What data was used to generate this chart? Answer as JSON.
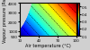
{
  "xlabel": "Air temperature (°C)",
  "ylabel": "Vapour pressure (Pa)",
  "xmin": 10,
  "xmax": 100,
  "ymin": 500,
  "ymax": 4000,
  "colorbar_min": 0.1,
  "colorbar_max": 0.55,
  "colorbar_ticks": [
    0.1,
    0.2,
    0.3,
    0.4,
    0.5
  ],
  "xticks": [
    10,
    40,
    70,
    100
  ],
  "yticks": [
    500,
    1000,
    2000,
    3000,
    4000
  ],
  "cmap": "jet",
  "contour_levels": [
    0.15,
    0.2,
    0.25,
    0.3,
    0.35,
    0.4,
    0.45,
    0.5
  ],
  "axes_facecolor": "#d0d0d0",
  "fig_facecolor": "#d0d0d0"
}
